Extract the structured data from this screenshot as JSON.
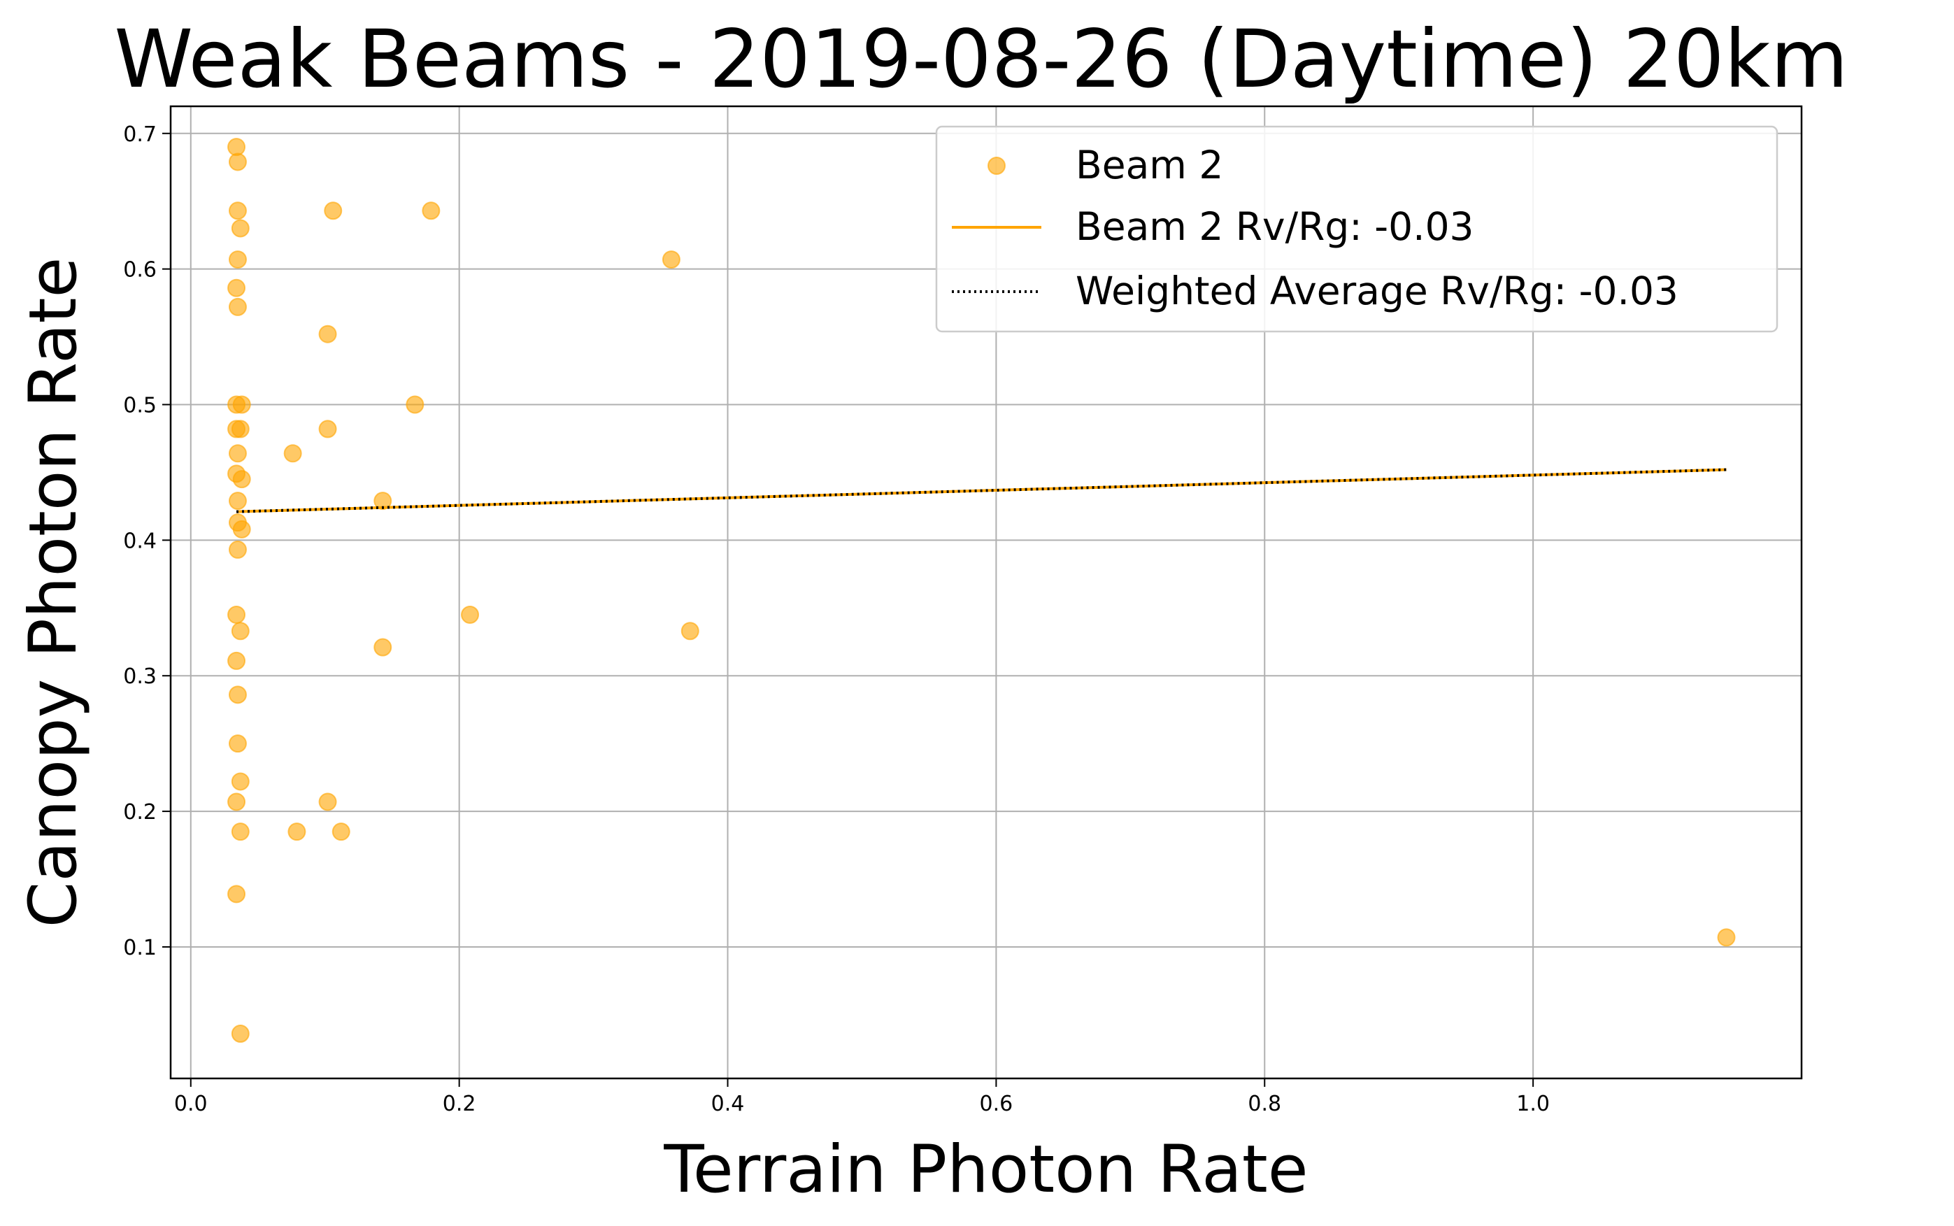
{
  "chart_data": {
    "type": "scatter",
    "title": "Weak Beams - 2019-08-26 (Daytime) 20km",
    "xlabel": "Terrain Photon Rate",
    "ylabel": "Canopy Photon Rate",
    "xlim": [
      -0.015,
      1.2
    ],
    "ylim": [
      0.003,
      0.72
    ],
    "xticks": [
      0.0,
      0.2,
      0.4,
      0.6,
      0.8,
      1.0
    ],
    "xtick_labels": [
      "0.0",
      "0.2",
      "0.4",
      "0.6",
      "0.8",
      "1.0"
    ],
    "yticks": [
      0.1,
      0.2,
      0.3,
      0.4,
      0.5,
      0.6,
      0.7
    ],
    "ytick_labels": [
      "0.1",
      "0.2",
      "0.3",
      "0.4",
      "0.5",
      "0.6",
      "0.7"
    ],
    "grid": true,
    "legend_position": "top-right",
    "colors": {
      "beam": "#FFA500",
      "average": "#000000"
    },
    "series": [
      {
        "name": "Beam 2",
        "kind": "scatter",
        "color": "#FFA500",
        "points": [
          [
            0.034,
            0.69
          ],
          [
            0.035,
            0.679
          ],
          [
            0.035,
            0.643
          ],
          [
            0.037,
            0.63
          ],
          [
            0.035,
            0.607
          ],
          [
            0.034,
            0.586
          ],
          [
            0.035,
            0.572
          ],
          [
            0.034,
            0.5
          ],
          [
            0.038,
            0.5
          ],
          [
            0.034,
            0.482
          ],
          [
            0.037,
            0.482
          ],
          [
            0.035,
            0.464
          ],
          [
            0.034,
            0.449
          ],
          [
            0.038,
            0.445
          ],
          [
            0.035,
            0.429
          ],
          [
            0.035,
            0.413
          ],
          [
            0.038,
            0.408
          ],
          [
            0.035,
            0.393
          ],
          [
            0.034,
            0.345
          ],
          [
            0.037,
            0.333
          ],
          [
            0.034,
            0.311
          ],
          [
            0.035,
            0.286
          ],
          [
            0.035,
            0.25
          ],
          [
            0.037,
            0.222
          ],
          [
            0.034,
            0.207
          ],
          [
            0.037,
            0.185
          ],
          [
            0.034,
            0.139
          ],
          [
            0.037,
            0.036
          ],
          [
            0.106,
            0.643
          ],
          [
            0.179,
            0.643
          ],
          [
            0.358,
            0.607
          ],
          [
            0.102,
            0.552
          ],
          [
            0.167,
            0.5
          ],
          [
            0.102,
            0.482
          ],
          [
            0.076,
            0.464
          ],
          [
            0.143,
            0.429
          ],
          [
            0.208,
            0.345
          ],
          [
            0.372,
            0.333
          ],
          [
            0.143,
            0.321
          ],
          [
            0.102,
            0.207
          ],
          [
            0.079,
            0.185
          ],
          [
            0.112,
            0.185
          ],
          [
            1.144,
            0.107
          ]
        ]
      },
      {
        "name": "Beam 2 Rv/Rg: -0.03",
        "kind": "line",
        "color": "#FFA500",
        "points": [
          [
            0.034,
            0.421
          ],
          [
            1.144,
            0.452
          ]
        ]
      },
      {
        "name": "Weighted Average Rv/Rg: -0.03",
        "kind": "dotted-line",
        "color": "#000000",
        "points": [
          [
            0.034,
            0.421
          ],
          [
            1.144,
            0.452
          ]
        ]
      }
    ]
  }
}
